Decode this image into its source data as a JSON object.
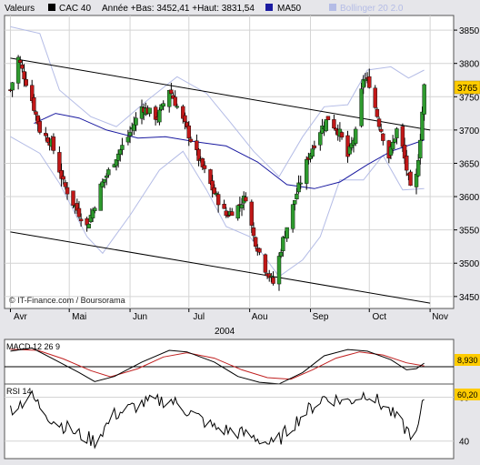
{
  "header": {
    "valeurs_label": "Valeurs",
    "cac_label": "CAC 40",
    "stats_text": "Année +Bas: 3452,41 +Haut: 3831,54",
    "ma50_label": "MA50",
    "bollinger_label": "Bollinger 20 2.0"
  },
  "credit": "© IT-Finance.com / Boursorama",
  "colors": {
    "up": "#2e9a2e",
    "down": "#c01818",
    "ma50": "#1a1aa0",
    "bollinger": "#b4bce6",
    "price_badge_bg": "#ffcc00",
    "plot_bg": "#ffffff",
    "frame_bg": "#e6e6ea",
    "macd_signal": "#c02020"
  },
  "chart_data": [
    {
      "type": "candlestick",
      "title": "CAC 40",
      "xlabel": "2004",
      "x_tick_labels": [
        "Avr",
        "Mai",
        "Jun",
        "Jul",
        "Aou",
        "Sep",
        "Oct",
        "Nov"
      ],
      "y_ticks": [
        3450,
        3500,
        3550,
        3600,
        3650,
        3700,
        3750,
        3800,
        3850
      ],
      "ylim": [
        3432,
        3872
      ],
      "last_price_label": "3765",
      "year_low": "3452,41",
      "year_high": "3831,54",
      "overlays": [
        "MA50",
        "Bollinger 20 2.0",
        "trend channel"
      ],
      "trend_lines": [
        {
          "name": "upper",
          "from": [
            "2004-04-01",
            3808
          ],
          "to": [
            "2004-11-01",
            3700
          ]
        },
        {
          "name": "lower",
          "from": [
            "2004-04-01",
            3547
          ],
          "to": [
            "2004-11-01",
            3440
          ]
        }
      ],
      "series_anchors_close": [
        [
          "2004-04-01",
          3760
        ],
        [
          "2004-04-05",
          3808
        ],
        [
          "2004-04-12",
          3745
        ],
        [
          "2004-04-16",
          3700
        ],
        [
          "2004-04-22",
          3680
        ],
        [
          "2004-04-28",
          3620
        ],
        [
          "2004-05-03",
          3590
        ],
        [
          "2004-05-10",
          3555
        ],
        [
          "2004-05-13",
          3580
        ],
        [
          "2004-05-17",
          3615
        ],
        [
          "2004-05-25",
          3660
        ],
        [
          "2004-05-31",
          3690
        ],
        [
          "2004-06-07",
          3735
        ],
        [
          "2004-06-15",
          3718
        ],
        [
          "2004-06-21",
          3762
        ],
        [
          "2004-06-25",
          3735
        ],
        [
          "2004-06-30",
          3700
        ],
        [
          "2004-07-07",
          3650
        ],
        [
          "2004-07-14",
          3605
        ],
        [
          "2004-07-20",
          3572
        ],
        [
          "2004-07-26",
          3585
        ],
        [
          "2004-07-30",
          3600
        ],
        [
          "2004-08-03",
          3540
        ],
        [
          "2004-08-09",
          3492
        ],
        [
          "2004-08-13",
          3470
        ],
        [
          "2004-08-18",
          3535
        ],
        [
          "2004-08-25",
          3605
        ],
        [
          "2004-08-31",
          3660
        ],
        [
          "2004-09-06",
          3700
        ],
        [
          "2004-09-10",
          3718
        ],
        [
          "2004-09-16",
          3695
        ],
        [
          "2004-09-20",
          3660
        ],
        [
          "2004-09-24",
          3695
        ],
        [
          "2004-09-28",
          3778
        ],
        [
          "2004-10-01",
          3770
        ],
        [
          "2004-10-06",
          3710
        ],
        [
          "2004-10-11",
          3660
        ],
        [
          "2004-10-15",
          3700
        ],
        [
          "2004-10-18",
          3672
        ],
        [
          "2004-10-22",
          3610
        ],
        [
          "2004-10-25",
          3630
        ],
        [
          "2004-10-27",
          3690
        ],
        [
          "2004-10-29",
          3765
        ]
      ],
      "ma50_anchors": [
        [
          "2004-04-13",
          3710
        ],
        [
          "2004-04-24",
          3725
        ],
        [
          "2004-05-06",
          3718
        ],
        [
          "2004-05-20",
          3700
        ],
        [
          "2004-06-05",
          3688
        ],
        [
          "2004-06-19",
          3690
        ],
        [
          "2004-07-05",
          3682
        ],
        [
          "2004-07-20",
          3676
        ],
        [
          "2004-08-05",
          3652
        ],
        [
          "2004-08-20",
          3618
        ],
        [
          "2004-09-03",
          3612
        ],
        [
          "2004-09-16",
          3622
        ],
        [
          "2004-09-30",
          3648
        ],
        [
          "2004-10-12",
          3668
        ],
        [
          "2004-10-29",
          3685
        ]
      ],
      "bollinger_upper_anchors": [
        [
          "2004-04-01",
          3855
        ],
        [
          "2004-04-16",
          3845
        ],
        [
          "2004-04-26",
          3760
        ],
        [
          "2004-05-12",
          3720
        ],
        [
          "2004-05-25",
          3705
        ],
        [
          "2004-06-10",
          3745
        ],
        [
          "2004-06-25",
          3780
        ],
        [
          "2004-07-10",
          3755
        ],
        [
          "2004-07-22",
          3712
        ],
        [
          "2004-08-03",
          3668
        ],
        [
          "2004-08-16",
          3630
        ],
        [
          "2004-08-28",
          3690
        ],
        [
          "2004-09-08",
          3735
        ],
        [
          "2004-09-20",
          3738
        ],
        [
          "2004-09-30",
          3790
        ],
        [
          "2004-10-12",
          3795
        ],
        [
          "2004-10-21",
          3778
        ],
        [
          "2004-10-29",
          3790
        ]
      ],
      "bollinger_lower_anchors": [
        [
          "2004-04-01",
          3690
        ],
        [
          "2004-04-16",
          3665
        ],
        [
          "2004-04-26",
          3620
        ],
        [
          "2004-05-10",
          3540
        ],
        [
          "2004-05-18",
          3515
        ],
        [
          "2004-06-01",
          3572
        ],
        [
          "2004-06-16",
          3640
        ],
        [
          "2004-06-28",
          3668
        ],
        [
          "2004-07-10",
          3610
        ],
        [
          "2004-07-20",
          3555
        ],
        [
          "2004-08-01",
          3540
        ],
        [
          "2004-08-16",
          3480
        ],
        [
          "2004-08-28",
          3505
        ],
        [
          "2004-09-06",
          3540
        ],
        [
          "2004-09-16",
          3625
        ],
        [
          "2004-09-28",
          3625
        ],
        [
          "2004-10-08",
          3662
        ],
        [
          "2004-10-18",
          3610
        ],
        [
          "2004-10-29",
          3612
        ]
      ]
    },
    {
      "type": "line",
      "title": "MACD 12 26 9",
      "last_value_label": "8,930",
      "zero_line": 0,
      "ylim": [
        -70,
        70
      ],
      "macd_anchors": [
        [
          "2004-04-01",
          40
        ],
        [
          "2004-04-12",
          48
        ],
        [
          "2004-04-22",
          22
        ],
        [
          "2004-05-06",
          -15
        ],
        [
          "2004-05-14",
          -38
        ],
        [
          "2004-05-24",
          -25
        ],
        [
          "2004-06-07",
          12
        ],
        [
          "2004-06-21",
          42
        ],
        [
          "2004-06-30",
          38
        ],
        [
          "2004-07-14",
          12
        ],
        [
          "2004-07-26",
          -25
        ],
        [
          "2004-08-06",
          -40
        ],
        [
          "2004-08-16",
          -44
        ],
        [
          "2004-08-28",
          -15
        ],
        [
          "2004-09-08",
          28
        ],
        [
          "2004-09-20",
          44
        ],
        [
          "2004-09-30",
          40
        ],
        [
          "2004-10-12",
          18
        ],
        [
          "2004-10-20",
          -8
        ],
        [
          "2004-10-25",
          -5
        ],
        [
          "2004-10-29",
          9
        ]
      ],
      "signal_anchors": [
        [
          "2004-04-01",
          45
        ],
        [
          "2004-04-15",
          42
        ],
        [
          "2004-04-28",
          20
        ],
        [
          "2004-05-12",
          -10
        ],
        [
          "2004-05-22",
          -26
        ],
        [
          "2004-06-05",
          -5
        ],
        [
          "2004-06-18",
          25
        ],
        [
          "2004-06-30",
          36
        ],
        [
          "2004-07-14",
          22
        ],
        [
          "2004-07-28",
          -8
        ],
        [
          "2004-08-10",
          -28
        ],
        [
          "2004-08-22",
          -32
        ],
        [
          "2004-09-02",
          -8
        ],
        [
          "2004-09-14",
          22
        ],
        [
          "2004-09-26",
          38
        ],
        [
          "2004-10-08",
          30
        ],
        [
          "2004-10-20",
          10
        ],
        [
          "2004-10-29",
          2
        ]
      ]
    },
    {
      "type": "line",
      "title": "RSI 14",
      "last_value_label": "60,20",
      "y_ticks": [
        40,
        60
      ],
      "ylim": [
        32,
        66
      ],
      "rsi_anchors": [
        [
          "2004-04-01",
          55
        ],
        [
          "2004-04-12",
          60
        ],
        [
          "2004-04-22",
          50
        ],
        [
          "2004-05-06",
          43
        ],
        [
          "2004-05-14",
          40
        ],
        [
          "2004-05-24",
          52
        ],
        [
          "2004-06-07",
          57
        ],
        [
          "2004-06-21",
          59
        ],
        [
          "2004-06-30",
          54
        ],
        [
          "2004-07-14",
          46
        ],
        [
          "2004-07-26",
          44
        ],
        [
          "2004-08-06",
          41
        ],
        [
          "2004-08-13",
          38
        ],
        [
          "2004-08-28",
          52
        ],
        [
          "2004-09-08",
          60
        ],
        [
          "2004-09-20",
          58
        ],
        [
          "2004-09-30",
          62
        ],
        [
          "2004-10-12",
          53
        ],
        [
          "2004-10-20",
          45
        ],
        [
          "2004-10-25",
          42
        ],
        [
          "2004-10-29",
          60
        ]
      ]
    }
  ]
}
